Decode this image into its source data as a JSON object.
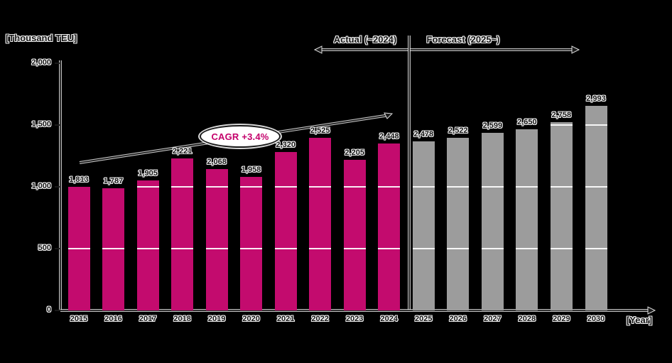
{
  "y_axis_title": "[Thousand TEU]",
  "x_axis_label": "[Year]",
  "legend": {
    "actual": "Actual (~2024)",
    "forecast": "Forecast (2025~)"
  },
  "cagr_label": "CAGR +3.4%",
  "colors": {
    "actual_bar": "#C30B6E",
    "forecast_bar": "#9C9C9C",
    "background": "#000000",
    "cagr_text": "#C4006B",
    "gridline": "#FFFFFF"
  },
  "chart_data": {
    "type": "bar",
    "title": "Container throughput actual and forecast",
    "ylabel": "[Thousand TEU]",
    "xlabel": "[Year]",
    "legend_position": "top",
    "grid": "horizontal white lines visible over bars",
    "y_ticks": [
      0,
      500,
      1000,
      1500,
      2000
    ],
    "y_tick_labels": [
      "0",
      "500",
      "1,000",
      "1,500",
      "2,000"
    ],
    "categories": [
      "2015",
      "2016",
      "2017",
      "2018",
      "2019",
      "2020",
      "2021",
      "2022",
      "2023",
      "2024",
      "2025",
      "2026",
      "2027",
      "2028",
      "2029",
      "2030"
    ],
    "series": [
      {
        "name": "Actual (~2024)",
        "categories": [
          "2015",
          "2016",
          "2017",
          "2018",
          "2019",
          "2020",
          "2021",
          "2022",
          "2023",
          "2024"
        ],
        "values": [
          1813,
          1787,
          1905,
          2221,
          2068,
          1958,
          2320,
          2525,
          2205,
          2448
        ]
      },
      {
        "name": "Forecast (2025~)",
        "categories": [
          "2025",
          "2026",
          "2027",
          "2028",
          "2029",
          "2030"
        ],
        "values": [
          2478,
          2522,
          2599,
          2650,
          2758,
          2993
        ]
      }
    ],
    "value_labels": [
      "1,813",
      "1,787",
      "1,905",
      "2,221",
      "2,068",
      "1,958",
      "2,320",
      "2,525",
      "2,205",
      "2,448",
      "2,478",
      "2,522",
      "2,599",
      "2,650",
      "2,758",
      "2,993"
    ],
    "annotations": {
      "cagr": "CAGR +3.4%",
      "cagr_span": "2015-2024"
    }
  }
}
